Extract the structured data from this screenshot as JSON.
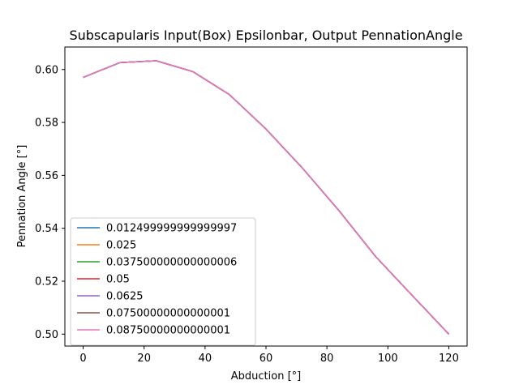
{
  "chart_data": {
    "type": "line",
    "title": "Subscapularis Input(Box) Epsilonbar, Output PennationAngle",
    "xlabel": "Abduction [°]",
    "ylabel": "Pennation Angle [°]",
    "xlim": [
      -6,
      126
    ],
    "ylim": [
      0.4955,
      0.6085
    ],
    "xticks": [
      0,
      20,
      40,
      60,
      80,
      100,
      120
    ],
    "yticks": [
      0.5,
      0.52,
      0.54,
      0.56,
      0.58,
      0.6
    ],
    "grid": false,
    "legend_position": "lower-left",
    "x": [
      0,
      12,
      24,
      36,
      48,
      60,
      72,
      84,
      96,
      108,
      120
    ],
    "series": [
      {
        "name": "0.012499999999999997",
        "color": "#1f77b4",
        "values": [
          0.597,
          0.6026,
          0.6033,
          0.5992,
          0.5905,
          0.5775,
          0.5627,
          0.5466,
          0.5293,
          0.5146,
          0.5
        ]
      },
      {
        "name": "0.025",
        "color": "#ff7f0e",
        "values": [
          0.597,
          0.6026,
          0.6033,
          0.5992,
          0.5905,
          0.5775,
          0.5627,
          0.5466,
          0.5293,
          0.5146,
          0.5
        ]
      },
      {
        "name": "0.037500000000000006",
        "color": "#2ca02c",
        "values": [
          0.597,
          0.6026,
          0.6033,
          0.5992,
          0.5905,
          0.5775,
          0.5627,
          0.5466,
          0.5293,
          0.5146,
          0.5
        ]
      },
      {
        "name": "0.05",
        "color": "#d62728",
        "values": [
          0.597,
          0.6026,
          0.6033,
          0.5992,
          0.5905,
          0.5775,
          0.5627,
          0.5466,
          0.5293,
          0.5146,
          0.5
        ]
      },
      {
        "name": "0.0625",
        "color": "#9467bd",
        "values": [
          0.597,
          0.6026,
          0.6033,
          0.5992,
          0.5905,
          0.5775,
          0.5627,
          0.5466,
          0.5293,
          0.5146,
          0.5
        ]
      },
      {
        "name": "0.07500000000000001",
        "color": "#8c564b",
        "values": [
          0.597,
          0.6026,
          0.6033,
          0.5992,
          0.5905,
          0.5775,
          0.5627,
          0.5466,
          0.5293,
          0.5146,
          0.5
        ]
      },
      {
        "name": "0.08750000000000001",
        "color": "#e377c2",
        "values": [
          0.597,
          0.6026,
          0.6033,
          0.5992,
          0.5905,
          0.5775,
          0.5627,
          0.5466,
          0.5293,
          0.5146,
          0.5
        ]
      }
    ]
  }
}
